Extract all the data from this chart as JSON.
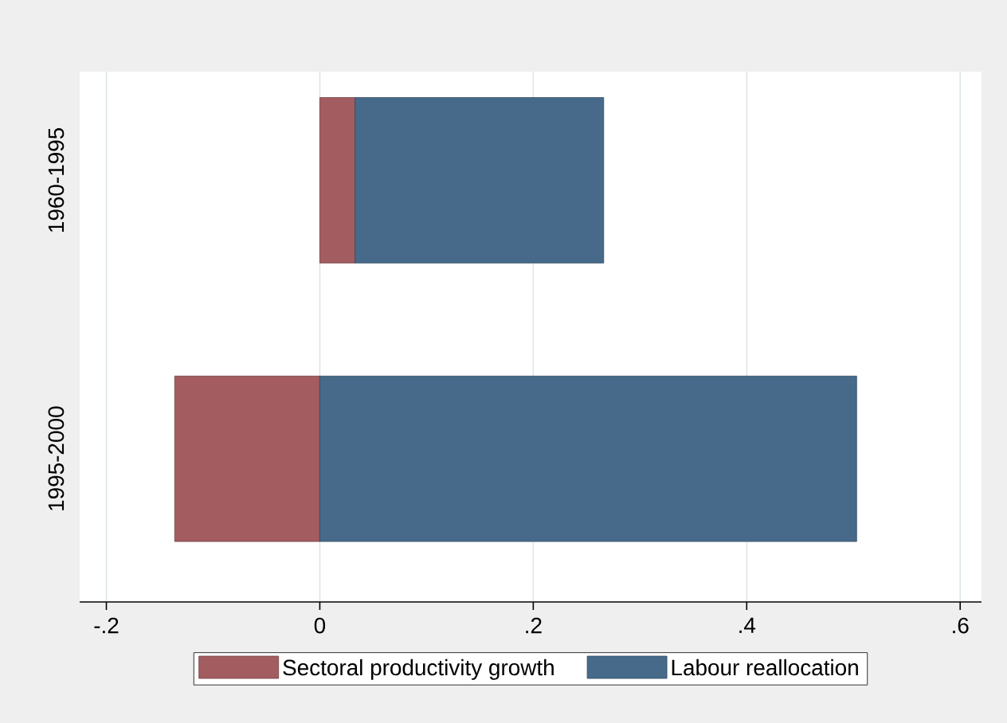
{
  "chart_data": {
    "type": "bar",
    "orientation": "horizontal",
    "stacked": true,
    "categories": [
      "1960-1995",
      "1995-2000"
    ],
    "series": [
      {
        "name": "Sectoral productivity growth",
        "color": "#a35c5f",
        "values": [
          0.033,
          -0.136
        ]
      },
      {
        "name": "Labour reallocation",
        "color": "#476a8a",
        "values": [
          0.233,
          0.503
        ]
      }
    ],
    "xlim": [
      -0.225,
      0.62
    ],
    "xticks": [
      {
        "value": -0.2,
        "label": "-.2"
      },
      {
        "value": 0,
        "label": "0"
      },
      {
        "value": 0.2,
        "label": ".2"
      },
      {
        "value": 0.4,
        "label": ".4"
      },
      {
        "value": 0.6,
        "label": ".6"
      }
    ],
    "grid": "x",
    "legend": "bottom"
  }
}
